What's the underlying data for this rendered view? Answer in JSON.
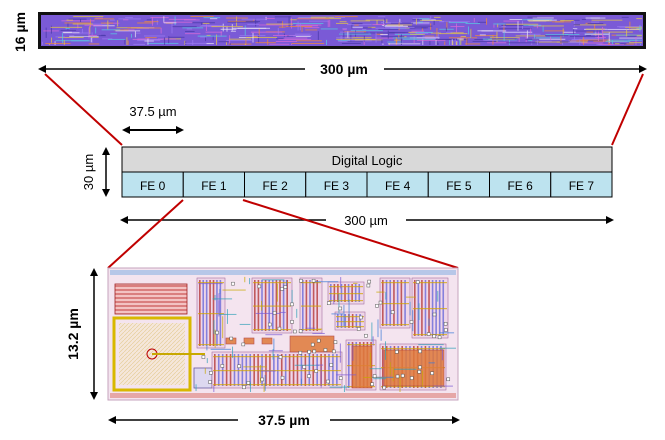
{
  "top_strip": {
    "height_label": "16 µm",
    "width_label": "300 µm"
  },
  "block_diagram": {
    "fe_width_label": "37.5 µm",
    "height_label": "30 µm",
    "header_label": "Digital Logic",
    "width_label": "300 µm",
    "frontends": [
      "FE 0",
      "FE 1",
      "FE 2",
      "FE 3",
      "FE 4",
      "FE 5",
      "FE 6",
      "FE 7"
    ],
    "colors": {
      "header_fill": "#d9d9d9",
      "fe_fill": "#bde3ef",
      "zoom_line": "#c00000"
    }
  },
  "fe_layout": {
    "height_label": "13.2 µm",
    "width_label": "37.5 µm"
  }
}
